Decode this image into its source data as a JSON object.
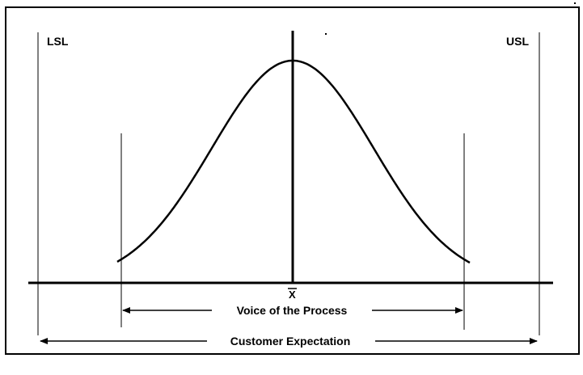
{
  "diagram": {
    "labels": {
      "lsl": "LSL",
      "usl": "USL",
      "mean": "X",
      "voice_of_process": "Voice of the Process",
      "customer_expectation": "Customer Expectation"
    },
    "colors": {
      "ink": "#000000",
      "background": "#ffffff"
    }
  }
}
